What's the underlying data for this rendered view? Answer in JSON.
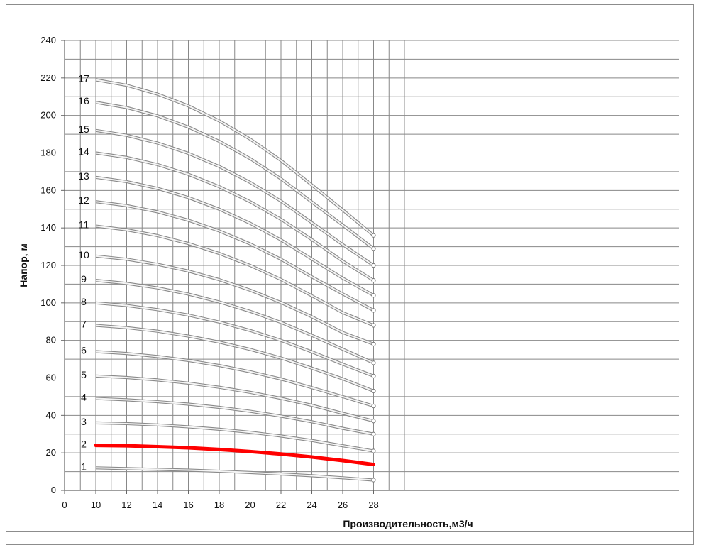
{
  "chart_data": {
    "type": "line",
    "title": "",
    "xlabel": "Производительность,м3/ч",
    "ylabel": "Напор, м",
    "xlim": [
      0,
      28
    ],
    "ylim": [
      0,
      240
    ],
    "x_ticks": [
      0,
      10,
      12,
      14,
      16,
      18,
      20,
      22,
      24,
      26,
      28
    ],
    "y_ticks": [
      0,
      20,
      40,
      60,
      80,
      100,
      120,
      140,
      160,
      180,
      200,
      220,
      240
    ],
    "grid": true,
    "legend": "none",
    "highlight_color": "#ff0000",
    "curve_color": "#d4d4d4",
    "x": [
      10,
      12,
      14,
      16,
      18,
      20,
      22,
      24,
      26,
      28
    ],
    "series": [
      {
        "name": "1",
        "values": [
          12,
          11.6,
          11.2,
          10.8,
          10.2,
          9.5,
          8.7,
          7.8,
          6.7,
          5.5
        ]
      },
      {
        "name": "2",
        "values": [
          24,
          23.8,
          23.3,
          22.7,
          21.8,
          20.7,
          19.4,
          17.8,
          15.9,
          13.8
        ],
        "highlight": true
      },
      {
        "name": "3",
        "values": [
          36,
          35.6,
          34.9,
          33.9,
          32.6,
          31,
          29,
          26.6,
          23.8,
          21
        ]
      },
      {
        "name": "4",
        "values": [
          49,
          48.3,
          47.3,
          46,
          44.3,
          42.2,
          39.6,
          36.6,
          33.1,
          30
        ]
      },
      {
        "name": "5",
        "values": [
          61,
          60.2,
          58.9,
          57.2,
          55,
          52.3,
          49.1,
          45.4,
          41.1,
          37
        ]
      },
      {
        "name": "6",
        "values": [
          74,
          73,
          71.4,
          69.3,
          66.6,
          63.3,
          59.4,
          54.8,
          50,
          45
        ]
      },
      {
        "name": "7",
        "values": [
          88,
          86.8,
          84.9,
          82.3,
          79.1,
          75.2,
          70.6,
          65.2,
          59.5,
          53
        ]
      },
      {
        "name": "8",
        "values": [
          100,
          98.6,
          96.4,
          93.5,
          89.8,
          85.3,
          80,
          73.9,
          67.3,
          61
        ]
      },
      {
        "name": "9",
        "values": [
          112,
          110.4,
          108,
          104.7,
          100.5,
          95.5,
          89.6,
          82.7,
          75.3,
          68
        ]
      },
      {
        "name": "10",
        "values": [
          125,
          123.3,
          120.6,
          117,
          112.4,
          106.8,
          100.2,
          92.6,
          84.2,
          78
        ]
      },
      {
        "name": "11",
        "values": [
          141,
          139,
          135.9,
          131.7,
          126.4,
          120,
          112.5,
          103.8,
          94.8,
          88
        ]
      },
      {
        "name": "12",
        "values": [
          154,
          151.9,
          148.6,
          144.1,
          138.4,
          131.5,
          123.3,
          113.9,
          104.8,
          96
        ]
      },
      {
        "name": "13",
        "values": [
          167,
          164.7,
          161.1,
          156.2,
          150,
          142.5,
          133.6,
          123.4,
          113.2,
          104
        ]
      },
      {
        "name": "14",
        "values": [
          180,
          177.6,
          173.8,
          168.6,
          162,
          154,
          144.6,
          133.8,
          122.3,
          112
        ]
      },
      {
        "name": "15",
        "values": [
          192,
          189.4,
          185.3,
          179.8,
          172.8,
          164.3,
          154.3,
          142.8,
          131.1,
          120
        ]
      },
      {
        "name": "16",
        "values": [
          207,
          204.2,
          199.8,
          193.8,
          186.2,
          177,
          166.2,
          153.8,
          141.5,
          129
        ]
      },
      {
        "name": "17",
        "values": [
          219,
          216.1,
          211.4,
          205.1,
          197.1,
          187.4,
          176,
          162.9,
          149.6,
          136
        ]
      }
    ]
  }
}
